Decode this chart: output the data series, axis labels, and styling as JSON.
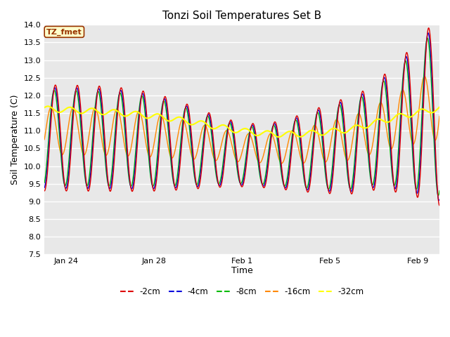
{
  "title": "Tonzi Soil Temperatures Set B",
  "xlabel": "Time",
  "ylabel": "Soil Temperature (C)",
  "ylim": [
    7.5,
    14.0
  ],
  "yticks": [
    7.5,
    8.0,
    8.5,
    9.0,
    9.5,
    10.0,
    10.5,
    11.0,
    11.5,
    12.0,
    12.5,
    13.0,
    13.5,
    14.0
  ],
  "series_colors": {
    "-2cm": "#dd0000",
    "-4cm": "#0000dd",
    "-8cm": "#00bb00",
    "-16cm": "#ff8800",
    "-32cm": "#ffff00"
  },
  "annotation_text": "TZ_fmet",
  "annotation_bg": "#ffffcc",
  "annotation_border": "#993300",
  "n_points": 1800,
  "duration_days": 18.0,
  "tick_positions": [
    1,
    5,
    9,
    13,
    17
  ],
  "tick_labels": [
    "Jan 24",
    "Jan 28",
    "Feb 1",
    "Feb 5",
    "Feb 9"
  ]
}
